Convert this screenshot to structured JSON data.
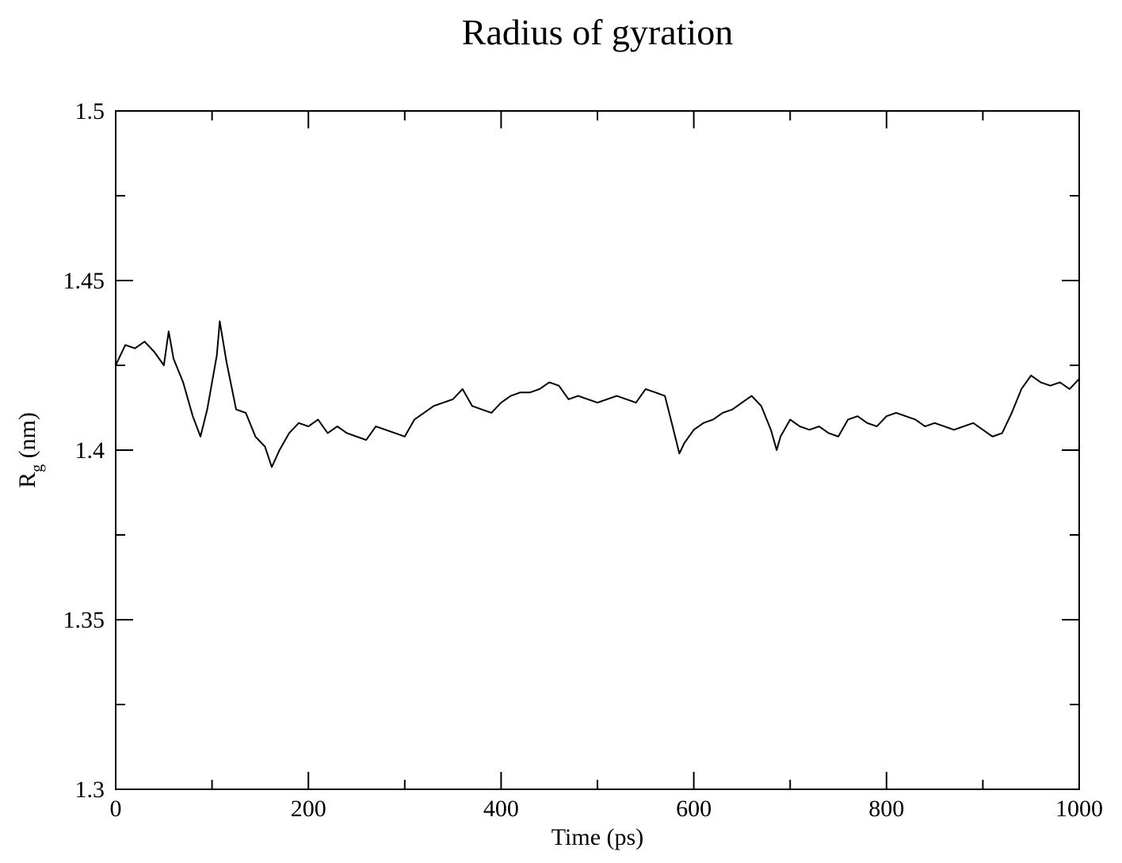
{
  "chart_data": {
    "type": "line",
    "title": "Radius of gyration",
    "xlabel": "Time (ps)",
    "ylabel": {
      "main": "R",
      "subscript": "g",
      "unit": " (nm)"
    },
    "xlim": [
      0,
      1000
    ],
    "ylim": [
      1.3,
      1.5
    ],
    "x_ticks": [
      0,
      200,
      400,
      600,
      800,
      1000
    ],
    "x_tick_labels": [
      "0",
      "200",
      "400",
      "600",
      "800",
      "1000"
    ],
    "x_minor_ticks": [
      100,
      300,
      500,
      700,
      900
    ],
    "y_ticks": [
      1.3,
      1.35,
      1.4,
      1.45,
      1.5
    ],
    "y_tick_labels": [
      "1.3",
      "1.35",
      "1.4",
      "1.45",
      "1.5"
    ],
    "y_minor_ticks": [
      1.325,
      1.375,
      1.425,
      1.475
    ],
    "grid": false,
    "legend": "none",
    "line_color": "#000000",
    "series": [
      {
        "x": [
          0,
          10,
          20,
          30,
          40,
          50,
          55,
          60,
          70,
          80,
          88,
          95,
          100,
          105,
          108,
          115,
          125,
          135,
          145,
          155,
          162,
          170,
          180,
          190,
          200,
          210,
          220,
          230,
          240,
          250,
          260,
          270,
          280,
          290,
          300,
          310,
          320,
          330,
          340,
          350,
          360,
          370,
          380,
          390,
          400,
          410,
          420,
          430,
          440,
          450,
          460,
          470,
          480,
          490,
          500,
          510,
          520,
          530,
          540,
          550,
          560,
          570,
          578,
          585,
          590,
          600,
          610,
          620,
          630,
          640,
          650,
          660,
          670,
          680,
          686,
          690,
          700,
          710,
          720,
          730,
          740,
          750,
          760,
          770,
          780,
          790,
          800,
          810,
          820,
          830,
          840,
          850,
          860,
          870,
          880,
          890,
          900,
          910,
          920,
          930,
          940,
          950,
          960,
          970,
          980,
          990,
          1000
        ],
        "y": [
          1.425,
          1.431,
          1.43,
          1.432,
          1.429,
          1.425,
          1.435,
          1.427,
          1.42,
          1.41,
          1.404,
          1.412,
          1.42,
          1.428,
          1.438,
          1.426,
          1.412,
          1.411,
          1.404,
          1.401,
          1.395,
          1.4,
          1.405,
          1.408,
          1.407,
          1.409,
          1.405,
          1.407,
          1.405,
          1.404,
          1.403,
          1.407,
          1.406,
          1.405,
          1.404,
          1.409,
          1.411,
          1.413,
          1.414,
          1.415,
          1.418,
          1.413,
          1.412,
          1.411,
          1.414,
          1.416,
          1.417,
          1.417,
          1.418,
          1.42,
          1.419,
          1.415,
          1.416,
          1.415,
          1.414,
          1.415,
          1.416,
          1.415,
          1.414,
          1.418,
          1.417,
          1.416,
          1.407,
          1.399,
          1.402,
          1.406,
          1.408,
          1.409,
          1.411,
          1.412,
          1.414,
          1.416,
          1.413,
          1.406,
          1.4,
          1.404,
          1.409,
          1.407,
          1.406,
          1.407,
          1.405,
          1.404,
          1.409,
          1.41,
          1.408,
          1.407,
          1.41,
          1.411,
          1.41,
          1.409,
          1.407,
          1.408,
          1.407,
          1.406,
          1.407,
          1.408,
          1.406,
          1.404,
          1.405,
          1.411,
          1.418,
          1.422,
          1.42,
          1.419,
          1.42,
          1.418,
          1.421
        ]
      }
    ]
  }
}
